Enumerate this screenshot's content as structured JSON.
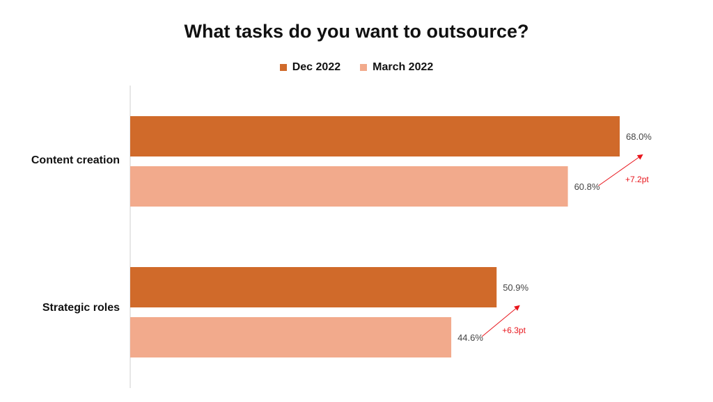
{
  "chart_data": {
    "type": "bar",
    "orientation": "horizontal",
    "title": "What tasks do you want to outsource?",
    "categories": [
      "Content creation",
      "Strategic roles"
    ],
    "series": [
      {
        "name": "Dec 2022",
        "color": "#d06a2a",
        "values": [
          68.0,
          50.9
        ],
        "labels": [
          "68.0%",
          "50.9%"
        ]
      },
      {
        "name": "March 2022",
        "color": "#f2aa8c",
        "values": [
          60.8,
          44.6
        ],
        "labels": [
          "60.8%",
          "44.6%"
        ]
      }
    ],
    "annotations": [
      {
        "category": "Content creation",
        "text": "+7.2pt",
        "color": "#e8141b"
      },
      {
        "category": "Strategic roles",
        "text": "+6.3pt",
        "color": "#e8141b"
      }
    ],
    "xlim": [
      0,
      70
    ],
    "grid": false,
    "legend_position": "top"
  }
}
